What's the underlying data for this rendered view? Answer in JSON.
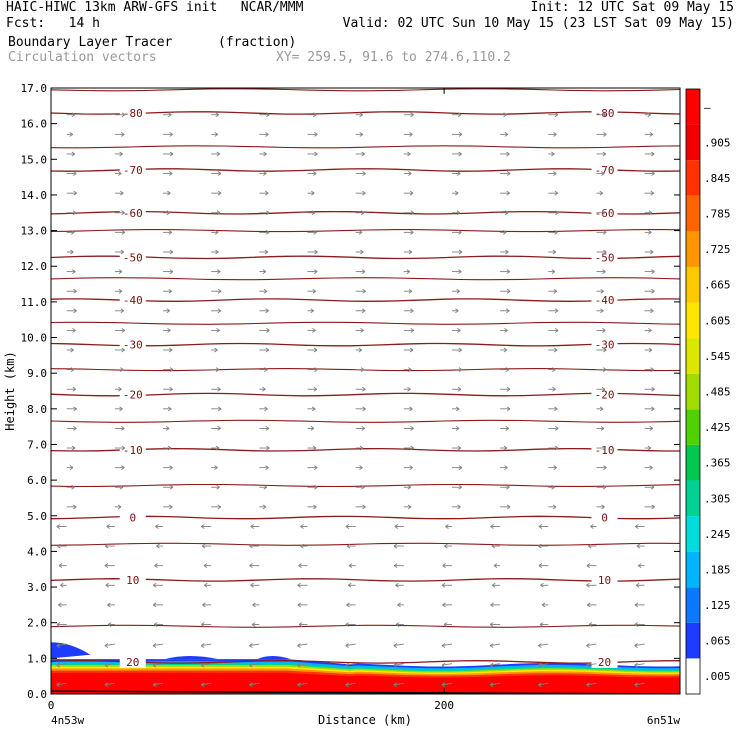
{
  "header": {
    "line1_left": "HAIC-HIWC 13km ARW-GFS init   NCAR/MMM",
    "line1_right": "Init: 12 UTC Sat 09 May 15",
    "line2_left": "Fcst:   14 h",
    "line2_right": "Valid: 02 UTC Sun 10 May 15 (23 LST Sat 09 May 15)",
    "field_name": "Boundary Layer Tracer",
    "field_units": "(fraction)",
    "overlay_name": "Circulation vectors",
    "xy_readout": "XY= 259.5, 91.6 to 274.6,110.2"
  },
  "chart_data": {
    "type": "heatmap",
    "title": "Boundary Layer Tracer (fraction)",
    "xlabel": "Distance (km)",
    "ylabel": "Height (km)",
    "xlim": [
      0,
      320
    ],
    "ylim": [
      0,
      17
    ],
    "x_ticks": [
      0,
      200
    ],
    "x_tick_labels": [
      "0",
      "200"
    ],
    "x_end_labels": [
      "4n53w",
      "6n51w"
    ],
    "y_ticks": [
      0,
      1,
      2,
      3,
      4,
      5,
      6,
      7,
      8,
      9,
      10,
      11,
      12,
      13,
      14,
      15,
      16,
      17
    ],
    "y_tick_labels": [
      "0.0",
      "1.0",
      "2.0",
      "3.0",
      "4.0",
      "5.0",
      "6.0",
      "7.0",
      "8.0",
      "9.0",
      "10.0",
      "11.0",
      "12.0",
      "13.0",
      "14.0",
      "15.0",
      "16.0",
      "17.0"
    ],
    "colorbar": {
      "labels": [
        ".005",
        ".065",
        ".125",
        ".185",
        ".245",
        ".305",
        ".365",
        ".425",
        ".485",
        ".545",
        ".605",
        ".665",
        ".725",
        ".785",
        ".845",
        ".905",
        "–"
      ],
      "colors": [
        "#ffffff",
        "#1e3cff",
        "#0a78ff",
        "#00b4ff",
        "#00dcdc",
        "#00d296",
        "#00c850",
        "#50d200",
        "#a0dc00",
        "#dce600",
        "#ffe600",
        "#ffc800",
        "#ff9600",
        "#ff6400",
        "#ff3200",
        "#f00000",
        "#ff0000"
      ]
    },
    "contours": [
      {
        "label": "-80",
        "height_km": 16.3
      },
      {
        "label": "-70",
        "height_km": 14.7
      },
      {
        "label": "-60",
        "height_km": 13.5
      },
      {
        "label": "-50",
        "height_km": 12.25
      },
      {
        "label": "-40",
        "height_km": 11.05
      },
      {
        "label": "-30",
        "height_km": 9.8
      },
      {
        "label": "-20",
        "height_km": 8.4
      },
      {
        "label": "-10",
        "height_km": 6.85
      },
      {
        "label": "0",
        "height_km": 4.95
      },
      {
        "label": "10",
        "height_km": 3.2
      },
      {
        "label": "20",
        "height_km": 0.9
      }
    ],
    "contour_line_color": "#8b1a1a",
    "vector_color": "#808080"
  }
}
